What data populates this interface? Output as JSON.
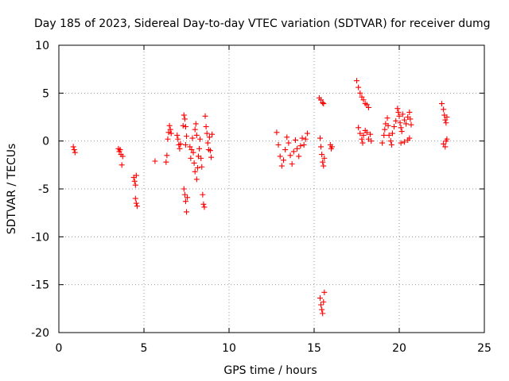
{
  "chart_data": {
    "type": "scatter",
    "title": "Day 185 of 2023, Sidereal Day-to-day VTEC variation (SDTVAR) for receiver dumg",
    "xlabel": "GPS time / hours",
    "ylabel": "SDTVAR / TECUs",
    "xlim": [
      0,
      25
    ],
    "ylim": [
      -20,
      10
    ],
    "xticks": [
      0,
      5,
      10,
      15,
      20,
      25
    ],
    "yticks": [
      -20,
      -15,
      -10,
      -5,
      0,
      5,
      10
    ],
    "xtick_labels": [
      "0",
      "5",
      "10",
      "15",
      "20",
      "25"
    ],
    "ytick_labels": [
      "-20",
      "-15",
      "-10",
      "-5",
      "0",
      "5",
      "10"
    ],
    "grid": true,
    "marker": "+",
    "color": "#ff0000",
    "series": [
      {
        "name": "SDTVAR",
        "points": [
          [
            0.85,
            -0.6
          ],
          [
            0.9,
            -0.9
          ],
          [
            0.95,
            -1.2
          ],
          [
            3.5,
            -0.8
          ],
          [
            3.55,
            -1.1
          ],
          [
            3.6,
            -0.9
          ],
          [
            3.65,
            -1.4
          ],
          [
            3.7,
            -2.5
          ],
          [
            3.75,
            -1.6
          ],
          [
            4.4,
            -3.8
          ],
          [
            4.45,
            -4.2
          ],
          [
            4.5,
            -4.6
          ],
          [
            4.55,
            -3.6
          ],
          [
            4.5,
            -6.0
          ],
          [
            4.55,
            -6.5
          ],
          [
            4.6,
            -6.8
          ],
          [
            5.65,
            -2.1
          ],
          [
            6.3,
            -2.2
          ],
          [
            6.35,
            -1.5
          ],
          [
            6.4,
            0.2
          ],
          [
            6.45,
            0.9
          ],
          [
            6.5,
            1.6
          ],
          [
            6.55,
            1.2
          ],
          [
            6.6,
            0.8
          ],
          [
            6.95,
            0.6
          ],
          [
            7.0,
            0.2
          ],
          [
            7.05,
            -0.4
          ],
          [
            7.1,
            -0.8
          ],
          [
            7.15,
            -0.3
          ],
          [
            7.3,
            1.6
          ],
          [
            7.35,
            2.7
          ],
          [
            7.4,
            2.3
          ],
          [
            7.45,
            1.5
          ],
          [
            7.5,
            0.5
          ],
          [
            7.45,
            -0.4
          ],
          [
            7.35,
            -5.0
          ],
          [
            7.4,
            -5.6
          ],
          [
            7.45,
            -6.3
          ],
          [
            7.5,
            -7.4
          ],
          [
            7.55,
            -5.9
          ],
          [
            7.7,
            -0.6
          ],
          [
            7.75,
            -1.8
          ],
          [
            7.8,
            -0.9
          ],
          [
            7.85,
            0.3
          ],
          [
            7.9,
            -1.2
          ],
          [
            7.95,
            -2.3
          ],
          [
            8.0,
            -3.2
          ],
          [
            8.0,
            1.2
          ],
          [
            8.05,
            1.8
          ],
          [
            8.1,
            0.6
          ],
          [
            8.1,
            -4.0
          ],
          [
            8.15,
            -2.8
          ],
          [
            8.2,
            -1.6
          ],
          [
            8.25,
            -0.8
          ],
          [
            8.3,
            0.2
          ],
          [
            8.35,
            -1.8
          ],
          [
            8.4,
            -2.7
          ],
          [
            8.45,
            -5.6
          ],
          [
            8.5,
            -6.6
          ],
          [
            8.55,
            -6.9
          ],
          [
            8.6,
            2.6
          ],
          [
            8.65,
            1.5
          ],
          [
            8.7,
            0.8
          ],
          [
            8.75,
            -0.2
          ],
          [
            8.8,
            -0.9
          ],
          [
            8.85,
            0.4
          ],
          [
            8.9,
            -1.0
          ],
          [
            8.95,
            -1.7
          ],
          [
            9.0,
            0.7
          ],
          [
            12.8,
            0.9
          ],
          [
            12.9,
            -0.4
          ],
          [
            13.0,
            -1.6
          ],
          [
            13.1,
            -2.6
          ],
          [
            13.2,
            -2.0
          ],
          [
            13.3,
            -0.9
          ],
          [
            13.4,
            0.4
          ],
          [
            13.5,
            -0.2
          ],
          [
            13.6,
            -1.5
          ],
          [
            13.7,
            -2.4
          ],
          [
            13.8,
            -1.1
          ],
          [
            13.9,
            0.1
          ],
          [
            14.0,
            -0.8
          ],
          [
            14.1,
            -1.6
          ],
          [
            14.2,
            -0.5
          ],
          [
            14.3,
            0.3
          ],
          [
            14.4,
            -0.4
          ],
          [
            14.5,
            0.2
          ],
          [
            14.6,
            0.8
          ],
          [
            15.3,
            4.5
          ],
          [
            15.4,
            4.3
          ],
          [
            15.5,
            4.0
          ],
          [
            15.55,
            3.9
          ],
          [
            15.35,
            0.3
          ],
          [
            15.4,
            -0.6
          ],
          [
            15.45,
            -1.4
          ],
          [
            15.5,
            -2.2
          ],
          [
            15.55,
            -2.6
          ],
          [
            15.6,
            -1.8
          ],
          [
            15.35,
            -16.4
          ],
          [
            15.4,
            -17.1
          ],
          [
            15.45,
            -17.6
          ],
          [
            15.5,
            -18.0
          ],
          [
            15.55,
            -16.8
          ],
          [
            15.6,
            -15.8
          ],
          [
            15.95,
            -0.4
          ],
          [
            16.0,
            -0.8
          ],
          [
            16.05,
            -0.6
          ],
          [
            17.5,
            6.3
          ],
          [
            17.6,
            5.6
          ],
          [
            17.7,
            5.0
          ],
          [
            17.8,
            4.6
          ],
          [
            17.9,
            4.3
          ],
          [
            18.0,
            3.9
          ],
          [
            18.1,
            3.8
          ],
          [
            18.2,
            3.5
          ],
          [
            17.6,
            1.4
          ],
          [
            17.7,
            0.8
          ],
          [
            17.8,
            0.2
          ],
          [
            17.85,
            -0.2
          ],
          [
            17.9,
            0.6
          ],
          [
            18.0,
            1.1
          ],
          [
            18.1,
            0.9
          ],
          [
            18.2,
            0.2
          ],
          [
            18.3,
            0.7
          ],
          [
            18.35,
            0.0
          ],
          [
            19.0,
            -0.2
          ],
          [
            19.1,
            0.6
          ],
          [
            19.15,
            1.2
          ],
          [
            19.2,
            1.8
          ],
          [
            19.3,
            2.4
          ],
          [
            19.35,
            1.6
          ],
          [
            19.4,
            0.6
          ],
          [
            19.5,
            0.0
          ],
          [
            19.55,
            -0.4
          ],
          [
            19.6,
            0.8
          ],
          [
            19.7,
            1.5
          ],
          [
            19.8,
            2.1
          ],
          [
            19.9,
            3.4
          ],
          [
            19.95,
            3.0
          ],
          [
            20.0,
            2.6
          ],
          [
            20.05,
            1.9
          ],
          [
            20.1,
            1.4
          ],
          [
            20.15,
            1.0
          ],
          [
            20.2,
            2.8
          ],
          [
            20.3,
            2.2
          ],
          [
            20.4,
            1.8
          ],
          [
            20.5,
            2.5
          ],
          [
            20.6,
            3.0
          ],
          [
            20.65,
            2.3
          ],
          [
            20.7,
            1.7
          ],
          [
            20.1,
            -0.2
          ],
          [
            20.3,
            -0.1
          ],
          [
            20.5,
            0.1
          ],
          [
            20.6,
            0.3
          ],
          [
            22.5,
            3.9
          ],
          [
            22.6,
            3.3
          ],
          [
            22.65,
            2.7
          ],
          [
            22.7,
            2.2
          ],
          [
            22.75,
            1.9
          ],
          [
            22.8,
            2.5
          ],
          [
            22.6,
            -0.3
          ],
          [
            22.7,
            -0.6
          ],
          [
            22.75,
            0.0
          ],
          [
            22.8,
            0.2
          ]
        ]
      }
    ]
  }
}
